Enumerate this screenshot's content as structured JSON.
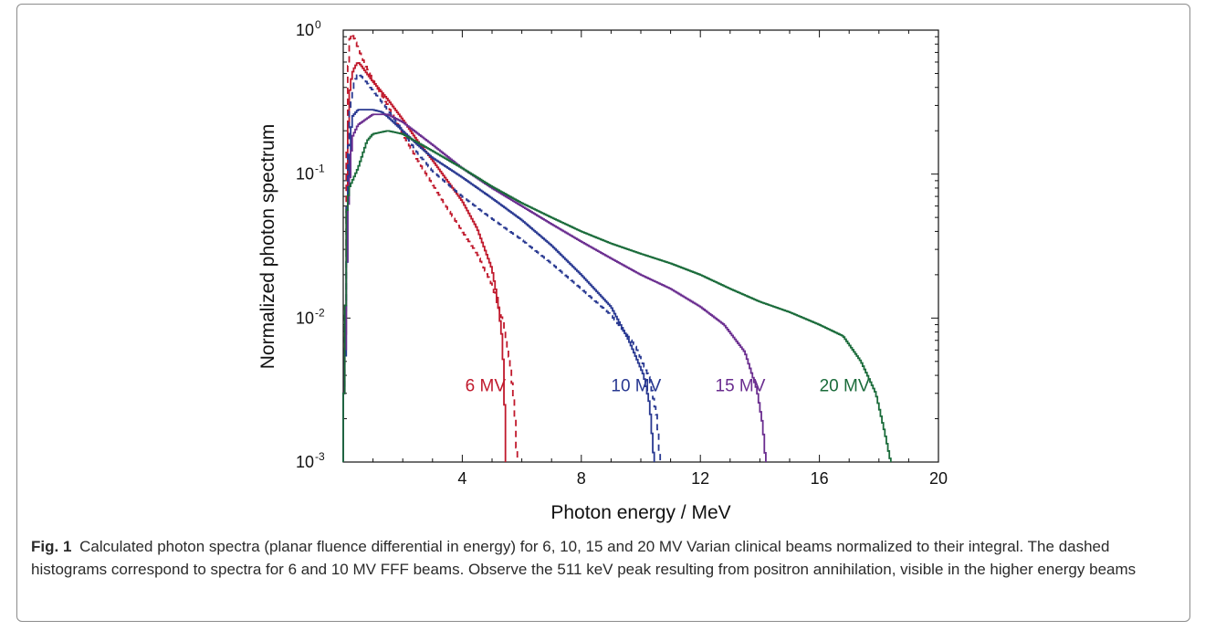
{
  "chart_data": {
    "type": "line",
    "title": "",
    "xlabel": "Photon energy / MeV",
    "ylabel": "Normalized photon spectrum",
    "xlim": [
      0,
      20
    ],
    "ylim": [
      0.001,
      1
    ],
    "yscale": "log",
    "xticks": [
      4,
      8,
      12,
      16,
      20
    ],
    "xtick_labels": [
      "4",
      "8",
      "12",
      "16",
      "20"
    ],
    "yticks": [
      {
        "value": 1,
        "base": "10",
        "exp": "0"
      },
      {
        "value": 0.1,
        "base": "10",
        "exp": "-1"
      },
      {
        "value": 0.01,
        "base": "10",
        "exp": "-2"
      },
      {
        "value": 0.001,
        "base": "10",
        "exp": "-3"
      }
    ],
    "series": [
      {
        "name": "6 MV",
        "color": "#c0192c",
        "dashed": false,
        "label": {
          "text": "6 MV",
          "x": 4.1,
          "y": 0.0031
        },
        "points": [
          [
            0.05,
            0.003
          ],
          [
            0.1,
            0.02
          ],
          [
            0.15,
            0.15
          ],
          [
            0.2,
            0.35
          ],
          [
            0.3,
            0.5
          ],
          [
            0.4,
            0.56
          ],
          [
            0.5,
            0.6
          ],
          [
            0.6,
            0.57
          ],
          [
            0.8,
            0.5
          ],
          [
            1.0,
            0.44
          ],
          [
            1.5,
            0.33
          ],
          [
            2.0,
            0.24
          ],
          [
            2.5,
            0.17
          ],
          [
            3.0,
            0.125
          ],
          [
            3.5,
            0.09
          ],
          [
            4.0,
            0.065
          ],
          [
            4.5,
            0.042
          ],
          [
            5.0,
            0.022
          ],
          [
            5.2,
            0.013
          ],
          [
            5.35,
            0.007
          ],
          [
            5.42,
            0.003
          ],
          [
            5.45,
            0.001
          ]
        ]
      },
      {
        "name": "6 MV FFF",
        "color": "#c0192c",
        "dashed": true,
        "points": [
          [
            0.05,
            0.003
          ],
          [
            0.1,
            0.05
          ],
          [
            0.15,
            0.4
          ],
          [
            0.2,
            0.8
          ],
          [
            0.25,
            0.95
          ],
          [
            0.35,
            0.9
          ],
          [
            0.5,
            0.75
          ],
          [
            0.7,
            0.6
          ],
          [
            1.0,
            0.45
          ],
          [
            1.5,
            0.3
          ],
          [
            2.0,
            0.19
          ],
          [
            2.5,
            0.125
          ],
          [
            3.0,
            0.085
          ],
          [
            3.5,
            0.058
          ],
          [
            4.0,
            0.04
          ],
          [
            4.5,
            0.028
          ],
          [
            5.0,
            0.017
          ],
          [
            5.4,
            0.009
          ],
          [
            5.6,
            0.005
          ],
          [
            5.75,
            0.0025
          ],
          [
            5.85,
            0.001
          ]
        ]
      },
      {
        "name": "10 MV",
        "color": "#283891",
        "dashed": false,
        "label": {
          "text": "10 MV",
          "x": 9.0,
          "y": 0.0031
        },
        "points": [
          [
            0.05,
            0.003
          ],
          [
            0.1,
            0.01
          ],
          [
            0.15,
            0.06
          ],
          [
            0.25,
            0.18
          ],
          [
            0.3,
            0.25
          ],
          [
            0.5,
            0.28
          ],
          [
            1.0,
            0.28
          ],
          [
            1.3,
            0.27
          ],
          [
            1.5,
            0.25
          ],
          [
            2.0,
            0.2
          ],
          [
            2.5,
            0.16
          ],
          [
            3.0,
            0.13
          ],
          [
            4.0,
            0.095
          ],
          [
            5.0,
            0.068
          ],
          [
            6.0,
            0.048
          ],
          [
            7.0,
            0.032
          ],
          [
            8.0,
            0.02
          ],
          [
            9.0,
            0.012
          ],
          [
            9.6,
            0.007
          ],
          [
            10.1,
            0.004
          ],
          [
            10.3,
            0.0025
          ],
          [
            10.45,
            0.001
          ]
        ]
      },
      {
        "name": "10 MV FFF",
        "color": "#283891",
        "dashed": true,
        "points": [
          [
            0.05,
            0.003
          ],
          [
            0.1,
            0.04
          ],
          [
            0.2,
            0.25
          ],
          [
            0.35,
            0.42
          ],
          [
            0.5,
            0.5
          ],
          [
            0.7,
            0.46
          ],
          [
            1.0,
            0.38
          ],
          [
            1.5,
            0.28
          ],
          [
            2.0,
            0.2
          ],
          [
            2.5,
            0.14
          ],
          [
            3.0,
            0.105
          ],
          [
            4.0,
            0.07
          ],
          [
            5.0,
            0.049
          ],
          [
            6.0,
            0.035
          ],
          [
            7.0,
            0.024
          ],
          [
            8.0,
            0.016
          ],
          [
            9.0,
            0.0105
          ],
          [
            9.8,
            0.0065
          ],
          [
            10.3,
            0.0038
          ],
          [
            10.55,
            0.002
          ],
          [
            10.65,
            0.001
          ]
        ]
      },
      {
        "name": "15 MV",
        "color": "#6a2d8f",
        "dashed": false,
        "label": {
          "text": "15 MV",
          "x": 12.5,
          "y": 0.0031
        },
        "points": [
          [
            0.05,
            0.003
          ],
          [
            0.15,
            0.05
          ],
          [
            0.3,
            0.18
          ],
          [
            0.5,
            0.22
          ],
          [
            1.0,
            0.26
          ],
          [
            1.5,
            0.26
          ],
          [
            2.0,
            0.23
          ],
          [
            3.0,
            0.16
          ],
          [
            4.0,
            0.11
          ],
          [
            5.0,
            0.08
          ],
          [
            6.0,
            0.06
          ],
          [
            7.0,
            0.045
          ],
          [
            8.0,
            0.034
          ],
          [
            9.0,
            0.026
          ],
          [
            10.0,
            0.02
          ],
          [
            11.0,
            0.016
          ],
          [
            12.0,
            0.012
          ],
          [
            12.8,
            0.009
          ],
          [
            13.5,
            0.0058
          ],
          [
            13.9,
            0.0032
          ],
          [
            14.1,
            0.0018
          ],
          [
            14.2,
            0.001
          ]
        ]
      },
      {
        "name": "20 MV",
        "color": "#1a6b3a",
        "dashed": false,
        "label": {
          "text": "20 MV",
          "x": 16.0,
          "y": 0.0031
        },
        "points": [
          [
            0.05,
            0.003
          ],
          [
            0.1,
            0.05
          ],
          [
            0.2,
            0.08
          ],
          [
            0.5,
            0.11
          ],
          [
            0.8,
            0.17
          ],
          [
            1.0,
            0.19
          ],
          [
            1.5,
            0.2
          ],
          [
            2.0,
            0.19
          ],
          [
            3.0,
            0.145
          ],
          [
            4.0,
            0.11
          ],
          [
            5.0,
            0.082
          ],
          [
            6.0,
            0.063
          ],
          [
            7.0,
            0.05
          ],
          [
            8.0,
            0.04
          ],
          [
            9.0,
            0.033
          ],
          [
            10.0,
            0.028
          ],
          [
            11.0,
            0.024
          ],
          [
            12.0,
            0.02
          ],
          [
            13.0,
            0.016
          ],
          [
            14.0,
            0.013
          ],
          [
            15.0,
            0.011
          ],
          [
            16.0,
            0.009
          ],
          [
            16.8,
            0.0075
          ],
          [
            17.4,
            0.005
          ],
          [
            17.9,
            0.003
          ],
          [
            18.2,
            0.0016
          ],
          [
            18.4,
            0.001
          ]
        ]
      }
    ]
  },
  "caption": {
    "label": "Fig. 1",
    "text": "Calculated photon spectra (planar fluence differential in energy) for 6, 10, 15 and 20 MV Varian clinical beams normalized to their integral. The dashed histograms correspond to spectra for 6 and 10 MV FFF beams. Observe the 511 keV peak resulting from positron annihilation, visible in the higher energy beams"
  }
}
